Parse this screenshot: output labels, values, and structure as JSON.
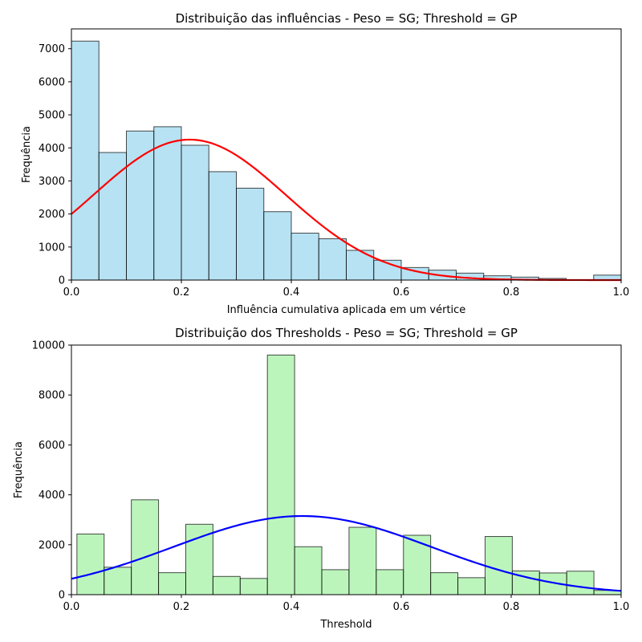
{
  "chart_data": [
    {
      "type": "bar",
      "title": "Distribuição das influências - Peso = SG; Threshold = GP",
      "xlabel": "Influência cumulativa aplicada em um vértice",
      "ylabel": "Frequência",
      "xlim": [
        0,
        1
      ],
      "ylim": [
        0,
        7600
      ],
      "xticks": [
        "0.0",
        "0.2",
        "0.4",
        "0.6",
        "0.8",
        "1.0"
      ],
      "xtick_values": [
        0,
        0.2,
        0.4,
        0.6,
        0.8,
        1.0
      ],
      "yticks": [
        "0",
        "1000",
        "2000",
        "3000",
        "4000",
        "5000",
        "6000",
        "7000"
      ],
      "ytick_values": [
        0,
        1000,
        2000,
        3000,
        4000,
        5000,
        6000,
        7000
      ],
      "bin_edges": [
        0.0,
        0.05,
        0.1,
        0.15,
        0.2,
        0.25,
        0.3,
        0.35,
        0.4,
        0.45,
        0.5,
        0.55,
        0.6,
        0.65,
        0.7,
        0.75,
        0.8,
        0.85,
        0.9,
        0.95,
        1.0
      ],
      "values": [
        7230,
        3860,
        4510,
        4640,
        4080,
        3280,
        2780,
        2070,
        1420,
        1250,
        900,
        600,
        380,
        300,
        210,
        130,
        90,
        50,
        0,
        150
      ],
      "bar_color": "#87ceeb",
      "curve": {
        "type": "normal",
        "mean": 0.215,
        "std": 0.175,
        "peak": 4250,
        "color": "#ff0000"
      },
      "grid": false
    },
    {
      "type": "bar",
      "title": "Distribuição dos Thresholds - Peso = SG; Threshold = GP",
      "xlabel": "Threshold",
      "ylabel": "Frequência",
      "xlim": [
        0,
        1
      ],
      "ylim": [
        0,
        10000
      ],
      "xticks": [
        "0.0",
        "0.2",
        "0.4",
        "0.6",
        "0.8",
        "1.0"
      ],
      "xtick_values": [
        0,
        0.2,
        0.4,
        0.6,
        0.8,
        1.0
      ],
      "yticks": [
        "0",
        "2000",
        "4000",
        "6000",
        "8000",
        "10000"
      ],
      "ytick_values": [
        0,
        2000,
        4000,
        6000,
        8000,
        10000
      ],
      "bin_edges": [
        0.01,
        0.0595,
        0.109,
        0.1585,
        0.208,
        0.2575,
        0.307,
        0.3565,
        0.406,
        0.4555,
        0.505,
        0.5545,
        0.604,
        0.6535,
        0.703,
        0.7525,
        0.802,
        0.8515,
        0.901,
        0.9505,
        1.0
      ],
      "values": [
        2430,
        1100,
        3800,
        880,
        2820,
        730,
        650,
        9600,
        1920,
        1000,
        2700,
        1000,
        2380,
        880,
        680,
        2330,
        950,
        870,
        940,
        170
      ],
      "bar_color": "#90ee90",
      "curve": {
        "type": "normal",
        "mean": 0.42,
        "std": 0.235,
        "peak": 3150,
        "color": "#0000ff"
      },
      "grid": false
    }
  ]
}
